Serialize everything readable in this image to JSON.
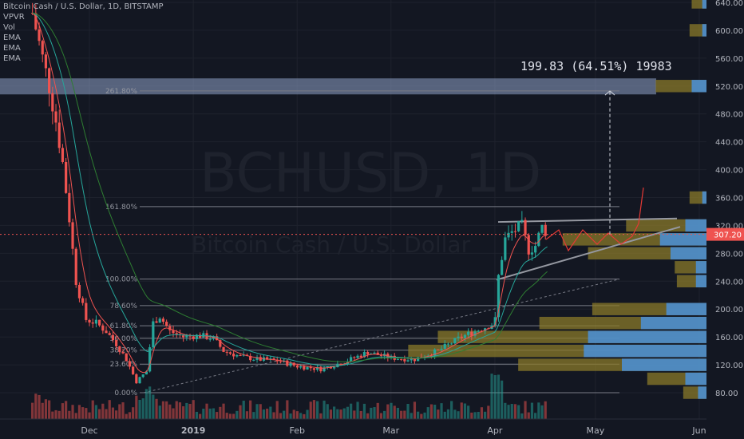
{
  "legend": {
    "title": "Bitcoin Cash / U.S. Dollar, 1D, BITSTAMP",
    "indicators": [
      "VPVR",
      "Vol",
      "EMA",
      "EMA",
      "EMA"
    ]
  },
  "watermark": {
    "symbol": "BCHUSD, 1D",
    "description": "Bitcoin Cash / U.S. Dollar"
  },
  "measure_label": "199.83 (64.51%) 19983",
  "price_label": "307.20",
  "colors": {
    "background": "#131722",
    "up": "#26a69a",
    "down": "#ef5350",
    "price_line": "#ef5350",
    "vp_up": "#4a90d9",
    "vp_down": "#8a7a2a",
    "fib_zone": "#8fa3c8",
    "grid": "#1e222d",
    "text": "#b2b5be"
  },
  "chart_data": {
    "type": "candlestick",
    "title": "Bitcoin Cash / U.S. Dollar, 1D, BITSTAMP",
    "ylim": [
      70,
      650
    ],
    "y_ticks": [
      80,
      120,
      160,
      200,
      240,
      280,
      320,
      360,
      400,
      440,
      480,
      520,
      560,
      600,
      640
    ],
    "x_ticks": [
      "Dec",
      "2019",
      "Feb",
      "Mar",
      "Apr",
      "May",
      "Jun"
    ],
    "last_price": 307.2,
    "price_series": [
      {
        "date": "2018-11-14",
        "close": 625
      },
      {
        "date": "2018-11-17",
        "close": 560
      },
      {
        "date": "2018-11-19",
        "close": 520
      },
      {
        "date": "2018-11-21",
        "close": 470
      },
      {
        "date": "2018-11-23",
        "close": 410
      },
      {
        "date": "2018-11-25",
        "close": 330
      },
      {
        "date": "2018-11-27",
        "close": 240
      },
      {
        "date": "2018-11-30",
        "close": 185
      },
      {
        "date": "2018-12-03",
        "close": 180
      },
      {
        "date": "2018-12-06",
        "close": 168
      },
      {
        "date": "2018-12-09",
        "close": 150
      },
      {
        "date": "2018-12-12",
        "close": 128
      },
      {
        "date": "2018-12-15",
        "close": 96
      },
      {
        "date": "2018-12-18",
        "close": 110
      },
      {
        "date": "2018-12-20",
        "close": 180
      },
      {
        "date": "2018-12-22",
        "close": 190
      },
      {
        "date": "2018-12-25",
        "close": 168
      },
      {
        "date": "2018-12-29",
        "close": 160
      },
      {
        "date": "2019-01-03",
        "close": 162
      },
      {
        "date": "2019-01-07",
        "close": 158
      },
      {
        "date": "2019-01-10",
        "close": 140
      },
      {
        "date": "2019-01-15",
        "close": 132
      },
      {
        "date": "2019-01-20",
        "close": 128
      },
      {
        "date": "2019-01-26",
        "close": 126
      },
      {
        "date": "2019-02-01",
        "close": 118
      },
      {
        "date": "2019-02-08",
        "close": 114
      },
      {
        "date": "2019-02-15",
        "close": 124
      },
      {
        "date": "2019-02-22",
        "close": 138
      },
      {
        "date": "2019-03-01",
        "close": 130
      },
      {
        "date": "2019-03-08",
        "close": 128
      },
      {
        "date": "2019-03-15",
        "close": 140
      },
      {
        "date": "2019-03-22",
        "close": 160
      },
      {
        "date": "2019-03-27",
        "close": 170
      },
      {
        "date": "2019-04-01",
        "close": 180
      },
      {
        "date": "2019-04-02",
        "close": 245
      },
      {
        "date": "2019-04-04",
        "close": 300
      },
      {
        "date": "2019-04-06",
        "close": 310
      },
      {
        "date": "2019-04-09",
        "close": 320
      },
      {
        "date": "2019-04-11",
        "close": 285
      },
      {
        "date": "2019-04-13",
        "close": 290
      },
      {
        "date": "2019-04-15",
        "close": 318
      },
      {
        "date": "2019-04-17",
        "close": 307
      }
    ],
    "fib_levels": [
      {
        "label": "0.00%",
        "value": 80
      },
      {
        "label": "23.60%",
        "value": 121
      },
      {
        "label": "38.20%",
        "value": 141
      },
      {
        "label": "50.00%",
        "value": 158
      },
      {
        "label": "61.80%",
        "value": 176
      },
      {
        "label": "78.60%",
        "value": 205
      },
      {
        "label": "100.00%",
        "value": 243
      },
      {
        "label": "161.80%",
        "value": 347
      },
      {
        "label": "261.80%",
        "value": 513
      }
    ],
    "volume_profile": [
      {
        "price": 80,
        "up": 0.04,
        "down": 0.07
      },
      {
        "price": 100,
        "up": 0.1,
        "down": 0.18
      },
      {
        "price": 120,
        "up": 0.4,
        "down": 0.49
      },
      {
        "price": 140,
        "up": 0.58,
        "down": 0.83
      },
      {
        "price": 160,
        "up": 0.56,
        "down": 0.71
      },
      {
        "price": 180,
        "up": 0.31,
        "down": 0.48
      },
      {
        "price": 200,
        "up": 0.19,
        "down": 0.35
      },
      {
        "price": 240,
        "up": 0.05,
        "down": 0.09
      },
      {
        "price": 260,
        "up": 0.05,
        "down": 0.1
      },
      {
        "price": 280,
        "up": 0.17,
        "down": 0.39
      },
      {
        "price": 300,
        "up": 0.22,
        "down": 0.46
      },
      {
        "price": 320,
        "up": 0.1,
        "down": 0.28
      },
      {
        "price": 360,
        "up": 0.02,
        "down": 0.06
      },
      {
        "price": 520,
        "up": 0.07,
        "down": 0.17
      },
      {
        "price": 600,
        "up": 0.02,
        "down": 0.06
      },
      {
        "price": 640,
        "up": 0.02,
        "down": 0.05
      }
    ]
  }
}
